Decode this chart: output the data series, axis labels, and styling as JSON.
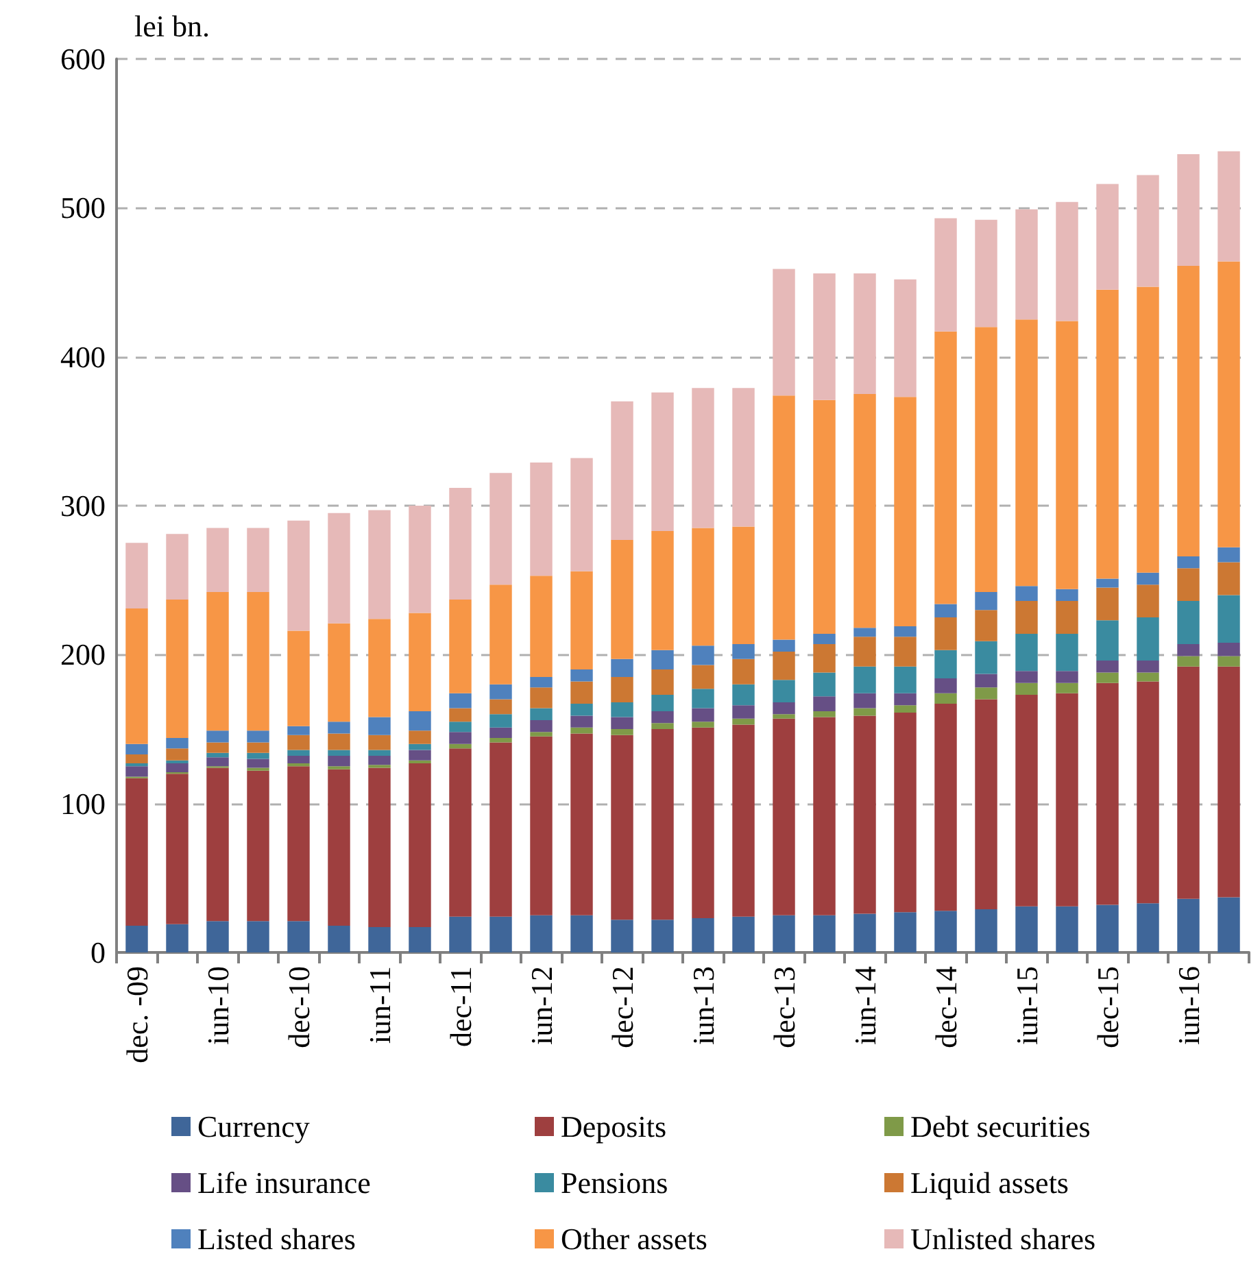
{
  "chart_data": {
    "type": "bar",
    "stacked": true,
    "ylabel": "lei bn.",
    "ylim": [
      0,
      600
    ],
    "yticks": [
      0,
      100,
      200,
      300,
      400,
      500,
      600
    ],
    "grid": "y",
    "legend": "bottom",
    "categories": [
      "dec. -09",
      null,
      "iun-10",
      null,
      "dec-10",
      null,
      "iun-11",
      null,
      "dec-11",
      null,
      "iun-12",
      null,
      "dec-12",
      null,
      "iun-13",
      null,
      "dec-13",
      null,
      "iun-14",
      null,
      "dec-14",
      null,
      "iun-15",
      null,
      "dec-15",
      null,
      "iun-16",
      null
    ],
    "series": [
      {
        "name": "Currency",
        "color": "#3f6699",
        "values": [
          18,
          19,
          21,
          21,
          21,
          18,
          17,
          17,
          24,
          24,
          25,
          25,
          22,
          22,
          23,
          24,
          25,
          25,
          26,
          27,
          28,
          29,
          31,
          31,
          32,
          33,
          36,
          37
        ]
      },
      {
        "name": "Deposits",
        "color": "#9e3f3f",
        "values": [
          99,
          101,
          103,
          101,
          104,
          105,
          107,
          110,
          113,
          117,
          120,
          122,
          124,
          128,
          128,
          129,
          132,
          133,
          133,
          134,
          139,
          141,
          142,
          143,
          149,
          149,
          156,
          155
        ]
      },
      {
        "name": "Debt securities",
        "color": "#7f9a48",
        "values": [
          1,
          1,
          1,
          2,
          2,
          2,
          2,
          2,
          3,
          3,
          3,
          4,
          4,
          4,
          4,
          4,
          3,
          4,
          5,
          5,
          7,
          8,
          8,
          7,
          7,
          6,
          7,
          7
        ]
      },
      {
        "name": "Life insurance",
        "color": "#664f85",
        "values": [
          7,
          6,
          6,
          6,
          5,
          7,
          6,
          7,
          8,
          7,
          8,
          8,
          8,
          8,
          9,
          9,
          8,
          10,
          10,
          8,
          10,
          9,
          8,
          8,
          8,
          8,
          8,
          9
        ]
      },
      {
        "name": "Pensions",
        "color": "#3a8ba0",
        "values": [
          2,
          2,
          3,
          4,
          4,
          4,
          4,
          4,
          7,
          9,
          8,
          8,
          10,
          11,
          13,
          14,
          15,
          16,
          18,
          18,
          19,
          22,
          25,
          25,
          27,
          29,
          29,
          32
        ]
      },
      {
        "name": "Liquid assets",
        "color": "#cc7833",
        "values": [
          6,
          8,
          7,
          7,
          10,
          11,
          10,
          9,
          9,
          10,
          14,
          15,
          17,
          17,
          16,
          17,
          19,
          19,
          20,
          20,
          22,
          21,
          22,
          22,
          22,
          22,
          22,
          22
        ]
      },
      {
        "name": "Listed shares",
        "color": "#4f81bd",
        "values": [
          7,
          7,
          8,
          8,
          6,
          8,
          12,
          13,
          10,
          10,
          7,
          8,
          12,
          13,
          13,
          10,
          8,
          7,
          6,
          7,
          9,
          12,
          10,
          8,
          6,
          8,
          8,
          10
        ]
      },
      {
        "name": "Other assets",
        "color": "#f79646",
        "values": [
          91,
          93,
          93,
          93,
          64,
          66,
          66,
          66,
          63,
          67,
          68,
          66,
          80,
          80,
          79,
          79,
          164,
          157,
          157,
          154,
          183,
          178,
          179,
          180,
          194,
          192,
          195,
          192
        ]
      },
      {
        "name": "Unlisted shares",
        "color": "#e6b9b8",
        "values": [
          44,
          44,
          43,
          43,
          74,
          74,
          73,
          72,
          75,
          75,
          76,
          76,
          93,
          93,
          94,
          93,
          85,
          85,
          81,
          79,
          76,
          72,
          74,
          80,
          71,
          75,
          75,
          74
        ]
      }
    ]
  }
}
